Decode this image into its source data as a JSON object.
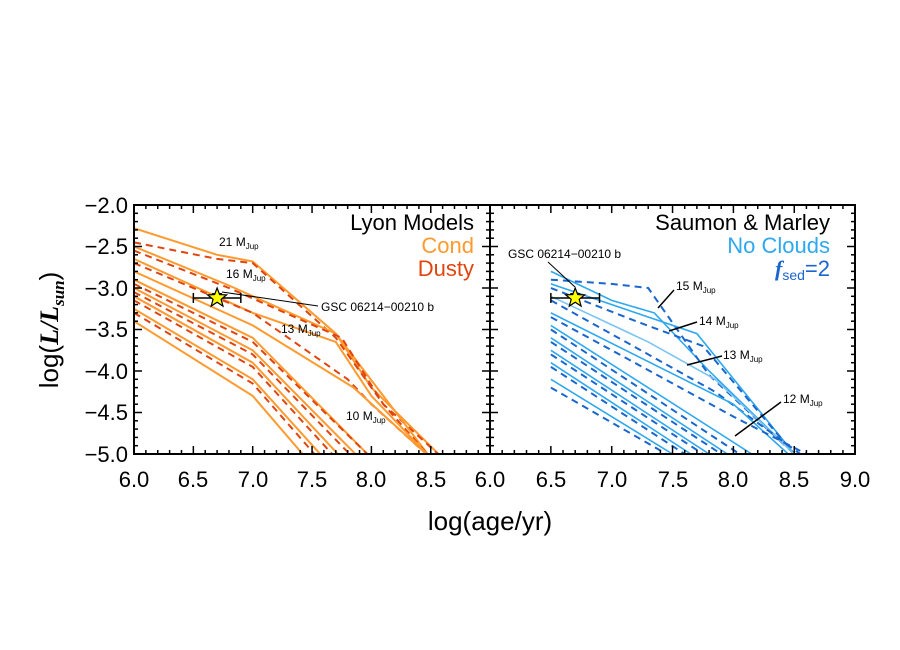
{
  "chart_data": [
    {
      "type": "line",
      "panel": "left",
      "title": "Lyon Models",
      "legend": [
        {
          "label": "Lyon Models",
          "color": "#000000"
        },
        {
          "label": "Cond",
          "color": "#FF9A2E",
          "style": "solid"
        },
        {
          "label": "Dusty",
          "color": "#E0450F",
          "style": "dashed"
        }
      ],
      "xlabel": "log(age/yr)",
      "ylabel": "log(L/Lsun)",
      "xlim": [
        6.0,
        9.0
      ],
      "ylim": [
        -5.05,
        -2.0
      ],
      "xticks": [
        "6.0",
        "6.5",
        "7.0",
        "7.5",
        "8.0",
        "8.5"
      ],
      "yticks": [
        "-2.0",
        "-2.5",
        "-3.0",
        "-3.5",
        "-4.0",
        "-4.5",
        "-5.0"
      ],
      "annotations": [
        {
          "text": "21 M_Jup",
          "x": 6.85,
          "y": -2.58
        },
        {
          "text": "16 M_Jup",
          "x": 6.9,
          "y": -2.92
        },
        {
          "text": "13 M_Jup",
          "x": 7.2,
          "y": -3.67
        },
        {
          "text": "10 M_Jup",
          "x": 7.8,
          "y": -4.57
        },
        {
          "text": "GSC 06214-00210 b",
          "x": 7.6,
          "y": -3.2
        }
      ],
      "point": {
        "name": "GSC 06214-00210 b",
        "x": 6.7,
        "y": -3.12,
        "xerr": [
          6.5,
          6.9
        ],
        "yerr": 0.05,
        "marker": "star",
        "color": "#FFFF00"
      },
      "series": [
        {
          "name": "Cond 21 MJup",
          "style": "solid",
          "x": [
            6.0,
            6.7,
            7.0,
            7.7,
            8.0,
            8.6
          ],
          "y": [
            -2.28,
            -2.6,
            -2.68,
            -3.55,
            -4.2,
            -5.05
          ]
        },
        {
          "name": "Dusty 21 MJup",
          "style": "dashed",
          "x": [
            6.0,
            6.7,
            7.0,
            7.7,
            8.1,
            8.6
          ],
          "y": [
            -2.45,
            -2.65,
            -2.7,
            -3.6,
            -4.4,
            -5.05
          ]
        },
        {
          "name": "Cond 16 MJup",
          "style": "solid",
          "x": [
            6.0,
            6.8,
            7.7,
            8.1,
            8.5
          ],
          "y": [
            -2.5,
            -2.97,
            -3.55,
            -4.3,
            -5.05
          ]
        },
        {
          "name": "Dusty 16 MJup",
          "style": "dashed",
          "x": [
            6.0,
            6.8,
            7.75,
            8.1,
            8.5
          ],
          "y": [
            -2.55,
            -3.0,
            -3.6,
            -4.4,
            -5.05
          ]
        },
        {
          "name": "Cond 13 MJup",
          "style": "solid",
          "x": [
            6.0,
            7.0,
            7.7,
            8.0,
            8.5
          ],
          "y": [
            -2.65,
            -3.3,
            -3.65,
            -4.3,
            -5.05
          ]
        },
        {
          "name": "Dusty 13 MJup",
          "style": "dashed",
          "x": [
            6.0,
            7.0,
            7.8,
            8.0,
            8.5
          ],
          "y": [
            -2.7,
            -3.3,
            -4.1,
            -4.4,
            -5.05
          ]
        },
        {
          "name": "Cond 12 MJup",
          "style": "solid",
          "x": [
            6.0,
            7.0,
            7.85,
            8.5
          ],
          "y": [
            -2.8,
            -3.45,
            -4.2,
            -5.05
          ]
        },
        {
          "name": "Cond 10 MJup",
          "style": "solid",
          "x": [
            6.0,
            7.0,
            8.0
          ],
          "y": [
            -2.9,
            -3.6,
            -5.05
          ]
        },
        {
          "name": "Dusty 10 MJup",
          "style": "dashed",
          "x": [
            6.0,
            7.0,
            8.0
          ],
          "y": [
            -2.95,
            -3.65,
            -5.05
          ]
        },
        {
          "name": "Cond 9 MJup",
          "style": "solid",
          "x": [
            6.0,
            7.0,
            7.9
          ],
          "y": [
            -3.0,
            -3.75,
            -5.05
          ]
        },
        {
          "name": "Dusty 9 MJup",
          "style": "dashed",
          "x": [
            6.0,
            7.0,
            7.85
          ],
          "y": [
            -3.05,
            -3.8,
            -5.05
          ]
        },
        {
          "name": "Cond 8 MJup",
          "style": "solid",
          "x": [
            6.0,
            7.0,
            7.75
          ],
          "y": [
            -3.1,
            -3.9,
            -5.05
          ]
        },
        {
          "name": "Dusty 8 MJup",
          "style": "dashed",
          "x": [
            6.0,
            7.0,
            7.7
          ],
          "y": [
            -3.15,
            -3.95,
            -5.05
          ]
        },
        {
          "name": "Cond 7 MJup",
          "style": "solid",
          "x": [
            6.0,
            7.0,
            7.6
          ],
          "y": [
            -3.25,
            -4.1,
            -5.05
          ]
        },
        {
          "name": "Dusty 7 MJup",
          "style": "dashed",
          "x": [
            6.0,
            7.0,
            7.55
          ],
          "y": [
            -3.3,
            -4.15,
            -5.05
          ]
        },
        {
          "name": "Cond 6 MJup",
          "style": "solid",
          "x": [
            6.0,
            7.0,
            7.45
          ],
          "y": [
            -3.4,
            -4.3,
            -5.05
          ]
        }
      ]
    },
    {
      "type": "line",
      "panel": "right",
      "title": "Saumon & Marley",
      "legend": [
        {
          "label": "Saumon & Marley",
          "color": "#000000"
        },
        {
          "label": "No Clouds",
          "color": "#2EA8F0",
          "style": "solid"
        },
        {
          "label": "f_sed=2",
          "color": "#1A66CC",
          "style": "dashed"
        }
      ],
      "xlabel": "log(age/yr)",
      "xlim": [
        6.0,
        9.0
      ],
      "ylim": [
        -5.05,
        -2.0
      ],
      "xticks": [
        "6.0",
        "6.5",
        "7.0",
        "7.5",
        "8.0",
        "8.5",
        "9.0"
      ],
      "annotations": [
        {
          "text": "GSC 06214-00210 b",
          "x": 6.15,
          "y": -2.75
        },
        {
          "text": "15 M_Jup",
          "x": 7.45,
          "y": -2.95
        },
        {
          "text": "14 M_Jup",
          "x": 7.65,
          "y": -3.35
        },
        {
          "text": "13 M_Jup",
          "x": 7.95,
          "y": -3.75
        },
        {
          "text": "12 M_Jup",
          "x": 8.35,
          "y": -4.35
        }
      ],
      "point": {
        "name": "GSC 06214-00210 b",
        "x": 6.7,
        "y": -3.12,
        "xerr": [
          6.5,
          6.9
        ],
        "yerr": 0.05,
        "marker": "star",
        "color": "#FFFF00"
      },
      "series": [
        {
          "name": "No Clouds 15 MJup",
          "style": "solid",
          "x": [
            6.5,
            7.0,
            7.35,
            7.8,
            8.5
          ],
          "y": [
            -2.8,
            -3.15,
            -3.3,
            -4.0,
            -5.0
          ]
        },
        {
          "name": "fsed2 15 MJup",
          "style": "dashed",
          "x": [
            6.5,
            7.0,
            7.3,
            7.8,
            8.5
          ],
          "y": [
            -2.9,
            -2.95,
            -3.0,
            -4.05,
            -5.0
          ]
        },
        {
          "name": "No Clouds 14 MJup",
          "style": "solid",
          "x": [
            6.5,
            7.2,
            7.7,
            8.5
          ],
          "y": [
            -2.95,
            -3.3,
            -3.55,
            -5.0
          ]
        },
        {
          "name": "fsed2 14 MJup",
          "style": "dashed",
          "x": [
            6.5,
            7.2,
            7.75,
            8.5
          ],
          "y": [
            -3.0,
            -3.4,
            -3.7,
            -5.0
          ]
        },
        {
          "name": "No Clouds 13 MJup",
          "style": "solid",
          "x": [
            6.5,
            7.3,
            7.85,
            8.5
          ],
          "y": [
            -3.1,
            -3.65,
            -4.1,
            -5.0
          ]
        },
        {
          "name": "fsed2 13 MJup",
          "style": "dashed",
          "x": [
            6.5,
            7.3,
            7.85,
            8.55
          ],
          "y": [
            -3.15,
            -3.8,
            -4.25,
            -5.0
          ]
        },
        {
          "name": "No Clouds 12 MJup",
          "style": "solid",
          "x": [
            6.5,
            8.0,
            8.45
          ],
          "y": [
            -3.3,
            -4.4,
            -5.0
          ]
        },
        {
          "name": "fsed2 12 MJup",
          "style": "dashed",
          "x": [
            6.5,
            8.0,
            8.6
          ],
          "y": [
            -3.35,
            -4.55,
            -5.0
          ]
        },
        {
          "name": "No Clouds 11 MJup",
          "style": "solid",
          "x": [
            6.5,
            8.15
          ],
          "y": [
            -3.45,
            -5.0
          ]
        },
        {
          "name": "fsed2 11 MJup",
          "style": "dashed",
          "x": [
            6.5,
            8.05
          ],
          "y": [
            -3.5,
            -5.0
          ]
        },
        {
          "name": "No Clouds 10 MJup",
          "style": "solid",
          "x": [
            6.5,
            7.95
          ],
          "y": [
            -3.6,
            -5.0
          ]
        },
        {
          "name": "fsed2 10 MJup",
          "style": "dashed",
          "x": [
            6.5,
            7.9
          ],
          "y": [
            -3.65,
            -5.0
          ]
        },
        {
          "name": "No Clouds 9 MJup",
          "style": "solid",
          "x": [
            6.5,
            7.8
          ],
          "y": [
            -3.75,
            -5.0
          ]
        },
        {
          "name": "fsed2 9 MJup",
          "style": "dashed",
          "x": [
            6.5,
            7.75
          ],
          "y": [
            -3.8,
            -5.0
          ]
        },
        {
          "name": "No Clouds 8 MJup",
          "style": "solid",
          "x": [
            6.5,
            7.65
          ],
          "y": [
            -3.9,
            -5.0
          ]
        },
        {
          "name": "fsed2 8 MJup",
          "style": "dashed",
          "x": [
            6.5,
            7.6
          ],
          "y": [
            -3.95,
            -5.0
          ]
        },
        {
          "name": "No Clouds 7 MJup",
          "style": "solid",
          "x": [
            6.5,
            7.5
          ],
          "y": [
            -4.1,
            -5.0
          ]
        },
        {
          "name": "fsed2 7 MJup",
          "style": "dashed",
          "x": [
            6.5,
            7.45
          ],
          "y": [
            -4.2,
            -5.0
          ]
        }
      ]
    }
  ],
  "labels": {
    "ylabel_prefix": "log(",
    "ylabel_L": "L",
    "ylabel_slash": "/",
    "ylabel_Lsun": "L",
    "ylabel_sun_sub": "sun",
    "ylabel_suffix": ")",
    "xlabel": "log(age/yr)",
    "left_title": "Lyon Models",
    "left_cond": "Cond",
    "left_dusty": "Dusty",
    "right_title": "Saumon & Marley",
    "right_noclouds": "No Clouds",
    "right_fsed_f": "f",
    "right_fsed_sub": "sed",
    "right_fsed_val": "=2",
    "object_name": "GSC 06214−00210 b",
    "mass_M": "M",
    "mass_sub": "Jup",
    "left_masses": [
      "21",
      "16",
      "13",
      "10"
    ],
    "right_masses": [
      "15",
      "14",
      "13",
      "12"
    ],
    "left_xticks": [
      "6.0",
      "6.5",
      "7.0",
      "7.5",
      "8.0",
      "8.5"
    ],
    "right_xticks": [
      "6.0",
      "6.5",
      "7.0",
      "7.5",
      "8.0",
      "8.5",
      "9.0"
    ],
    "yticks": [
      "−2.0",
      "−2.5",
      "−3.0",
      "−3.5",
      "−4.0",
      "−4.5",
      "−5.0"
    ]
  },
  "colors": {
    "cond": "#FF9A2E",
    "dusty": "#E0450F",
    "noclouds": "#2EA8F0",
    "noclouds_light": "#7CC4F2",
    "fsed": "#1A66CC",
    "star": "#FFFF00"
  }
}
